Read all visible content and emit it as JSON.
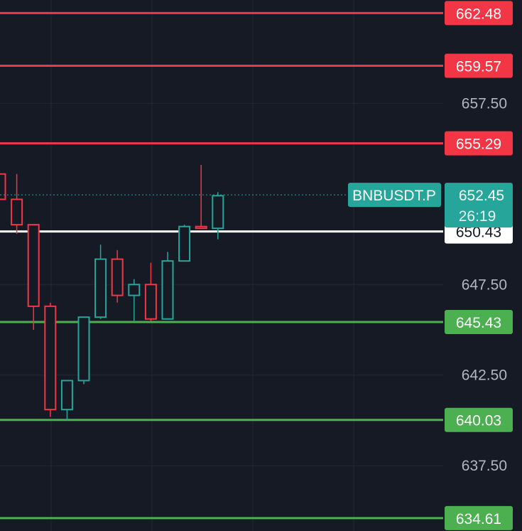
{
  "chart_data": {
    "type": "candlestick",
    "title": "",
    "symbol": "BNBUSDT.P",
    "last_price": "652.45",
    "countdown": "26:19",
    "ylim": [
      633.9,
      663.2
    ],
    "y_ticks": [
      "657.50",
      "647.50",
      "642.50",
      "637.50"
    ],
    "y_tick_values": [
      657.5,
      647.5,
      642.5,
      637.5
    ],
    "level_lines": [
      {
        "label": "662.48",
        "value": 662.48,
        "color": "#f23645",
        "kind": "resistance"
      },
      {
        "label": "659.57",
        "value": 659.57,
        "color": "#f23645",
        "kind": "resistance"
      },
      {
        "label": "655.29",
        "value": 655.29,
        "color": "#f23645",
        "kind": "resistance"
      },
      {
        "label": "650.43",
        "value": 650.43,
        "color": "#ffffff",
        "kind": "pivot"
      },
      {
        "label": "645.43",
        "value": 645.43,
        "color": "#4caf50",
        "kind": "support"
      },
      {
        "label": "640.03",
        "value": 640.03,
        "color": "#4caf50",
        "kind": "support"
      },
      {
        "label": "634.61",
        "value": 634.61,
        "color": "#4caf50",
        "kind": "support"
      }
    ],
    "candles": [
      {
        "open": 653.6,
        "high": 653.6,
        "low": 652.2,
        "close": 652.2
      },
      {
        "open": 652.2,
        "high": 653.6,
        "low": 650.3,
        "close": 650.8
      },
      {
        "open": 650.8,
        "high": 650.8,
        "low": 645.0,
        "close": 646.3
      },
      {
        "open": 646.3,
        "high": 646.5,
        "low": 640.2,
        "close": 640.6
      },
      {
        "open": 640.6,
        "high": 642.2,
        "low": 640.0,
        "close": 642.2
      },
      {
        "open": 642.2,
        "high": 645.7,
        "low": 642.0,
        "close": 645.7
      },
      {
        "open": 645.7,
        "high": 649.7,
        "low": 645.6,
        "close": 648.9
      },
      {
        "open": 648.9,
        "high": 649.4,
        "low": 646.5,
        "close": 646.9
      },
      {
        "open": 646.9,
        "high": 647.8,
        "low": 645.5,
        "close": 647.5
      },
      {
        "open": 647.5,
        "high": 648.7,
        "low": 645.5,
        "close": 645.6
      },
      {
        "open": 645.6,
        "high": 649.3,
        "low": 645.6,
        "close": 648.8
      },
      {
        "open": 648.8,
        "high": 650.8,
        "low": 648.8,
        "close": 650.7
      },
      {
        "open": 650.7,
        "high": 654.1,
        "low": 650.6,
        "close": 650.6
      },
      {
        "open": 650.6,
        "high": 652.6,
        "low": 650.0,
        "close": 652.4
      }
    ]
  },
  "colors": {
    "background": "#161a25",
    "grid": "#232733",
    "up": "#26a69a",
    "down": "#f23645",
    "resistance": "#f23645",
    "support": "#4caf50",
    "pivot": "#ffffff",
    "last_price_tag": "#26a69a",
    "axis_text": "#b2b5be"
  }
}
